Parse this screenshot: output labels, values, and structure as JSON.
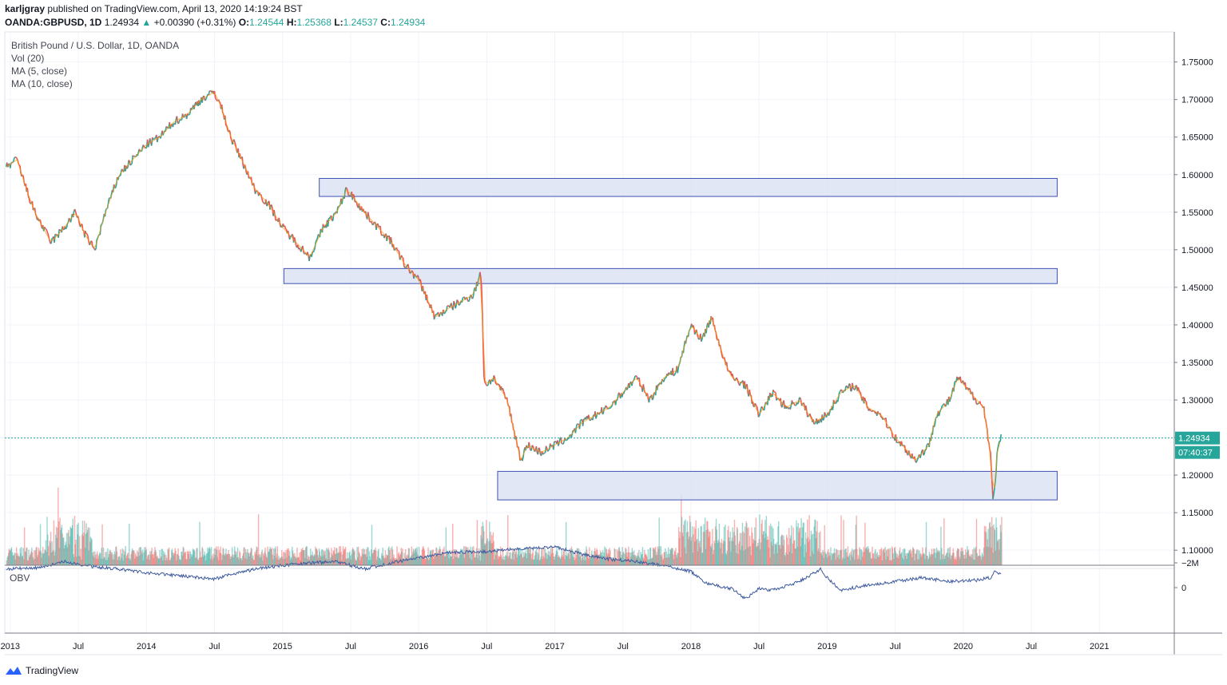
{
  "header": {
    "publisher": "karljgray",
    "published_text": "published on TradingView.com, April 13, 2020 14:19:24 BST",
    "symbol": "OANDA:GBPUSD, 1D",
    "last": "1.24934",
    "change_arrow": "▲",
    "change": "+0.00390 (+0.31%)",
    "o_label": "O:",
    "o_value": "1.24544",
    "h_label": "H:",
    "h_value": "1.25368",
    "l_label": "L:",
    "l_value": "1.24537",
    "c_label": "C:",
    "c_value": "1.24934"
  },
  "legend": {
    "title": "British Pound / U.S. Dollar, 1D, OANDA",
    "vol": "Vol (20)",
    "ma5": "MA (5, close)",
    "ma10": "MA (10, close)"
  },
  "obv": {
    "label": "OBV",
    "ticks": [
      "0",
      "−2M"
    ],
    "values": [
      0,
      -2
    ]
  },
  "price_tag": {
    "value": "1.24934",
    "countdown": "07:40:37"
  },
  "footer": {
    "brand": "TradingView",
    "icon": "tradingview-logo-icon"
  },
  "colors": {
    "up": "#26a69a",
    "down": "#ef5350",
    "ma": "#ff9800",
    "obv": "#3d5a9e",
    "zone_fill": "#dbe1f2",
    "zone_stroke": "#3f51b5",
    "tag": "#26a69a"
  },
  "chart_data": {
    "type": "line",
    "ylim": [
      1.08,
      1.79
    ],
    "xlim": [
      2012.96,
      2021.55
    ],
    "yticks": [
      "1.75000",
      "1.70000",
      "1.65000",
      "1.60000",
      "1.55000",
      "1.50000",
      "1.45000",
      "1.40000",
      "1.35000",
      "1.30000",
      "1.25000",
      "1.20000",
      "1.15000",
      "1.10000"
    ],
    "ytick_values": [
      1.75,
      1.7,
      1.65,
      1.6,
      1.55,
      1.5,
      1.45,
      1.4,
      1.35,
      1.3,
      1.25,
      1.2,
      1.15,
      1.1
    ],
    "xticks": [
      "2013",
      "Jul",
      "2014",
      "Jul",
      "2015",
      "Jul",
      "2016",
      "Jul",
      "2017",
      "Jul",
      "2018",
      "Jul",
      "2019",
      "Jul",
      "2020",
      "Jul",
      "2021"
    ],
    "xtick_values": [
      2013.0,
      2013.5,
      2014.0,
      2014.5,
      2015.0,
      2015.5,
      2016.0,
      2016.5,
      2017.0,
      2017.5,
      2018.0,
      2018.5,
      2019.0,
      2019.5,
      2020.0,
      2020.5,
      2021.0
    ],
    "series": [
      {
        "x": [
          2012.97,
          2013.05,
          2013.12,
          2013.18,
          2013.3,
          2013.4,
          2013.48,
          2013.55,
          2013.62,
          2013.7,
          2013.8,
          2013.9,
          2014.0,
          2014.1,
          2014.2,
          2014.3,
          2014.4,
          2014.5,
          2014.55,
          2014.62,
          2014.7,
          2014.8,
          2014.9,
          2015.0,
          2015.1,
          2015.2,
          2015.3,
          2015.4,
          2015.47,
          2015.52,
          2015.6,
          2015.7,
          2015.8,
          2015.9,
          2016.0,
          2016.05,
          2016.12,
          2016.2,
          2016.3,
          2016.4,
          2016.46,
          2016.48,
          2016.5,
          2016.55,
          2016.65,
          2016.75,
          2016.8,
          2016.9,
          2017.0,
          2017.1,
          2017.2,
          2017.3,
          2017.4,
          2017.5,
          2017.6,
          2017.7,
          2017.8,
          2017.9,
          2018.0,
          2018.08,
          2018.15,
          2018.25,
          2018.3,
          2018.4,
          2018.5,
          2018.6,
          2018.7,
          2018.8,
          2018.9,
          2019.0,
          2019.1,
          2019.2,
          2019.3,
          2019.4,
          2019.5,
          2019.6,
          2019.65,
          2019.75,
          2019.8,
          2019.9,
          2019.96,
          2020.05,
          2020.1,
          2020.15,
          2020.2,
          2020.22,
          2020.25,
          2020.28
        ],
        "values": [
          1.61,
          1.62,
          1.58,
          1.55,
          1.51,
          1.53,
          1.55,
          1.52,
          1.5,
          1.55,
          1.6,
          1.62,
          1.64,
          1.65,
          1.67,
          1.68,
          1.7,
          1.71,
          1.69,
          1.65,
          1.62,
          1.58,
          1.56,
          1.53,
          1.51,
          1.49,
          1.53,
          1.55,
          1.58,
          1.57,
          1.55,
          1.53,
          1.51,
          1.48,
          1.46,
          1.44,
          1.41,
          1.42,
          1.43,
          1.44,
          1.47,
          1.33,
          1.32,
          1.33,
          1.3,
          1.22,
          1.24,
          1.23,
          1.24,
          1.25,
          1.27,
          1.28,
          1.29,
          1.31,
          1.33,
          1.3,
          1.33,
          1.34,
          1.4,
          1.38,
          1.41,
          1.35,
          1.33,
          1.32,
          1.28,
          1.31,
          1.29,
          1.3,
          1.27,
          1.28,
          1.31,
          1.32,
          1.29,
          1.28,
          1.25,
          1.23,
          1.22,
          1.24,
          1.28,
          1.3,
          1.33,
          1.31,
          1.3,
          1.29,
          1.23,
          1.16,
          1.23,
          1.25
        ]
      }
    ],
    "zones": [
      {
        "x0": 2015.27,
        "x1": 2020.69,
        "y0": 1.571,
        "y1": 1.595
      },
      {
        "x0": 2015.01,
        "x1": 2020.69,
        "y0": 1.455,
        "y1": 1.475
      },
      {
        "x0": 2016.58,
        "x1": 2020.69,
        "y0": 1.167,
        "y1": 1.205
      }
    ],
    "current_price_line": 1.24934,
    "obv_series": {
      "x": [
        2012.97,
        2013.2,
        2013.4,
        2013.6,
        2013.8,
        2014.0,
        2014.2,
        2014.4,
        2014.5,
        2014.6,
        2014.8,
        2015.0,
        2015.2,
        2015.4,
        2015.6,
        2015.8,
        2016.0,
        2016.2,
        2016.4,
        2016.5,
        2016.7,
        2016.9,
        2017.0,
        2017.2,
        2017.4,
        2017.6,
        2017.8,
        2018.0,
        2018.1,
        2018.3,
        2018.4,
        2018.5,
        2018.6,
        2018.8,
        2018.95,
        2019.0,
        2019.1,
        2019.3,
        2019.5,
        2019.7,
        2019.9,
        2020.1,
        2020.2,
        2020.23,
        2020.28
      ],
      "values": [
        -1.5,
        -1.6,
        -2.1,
        -1.7,
        -1.5,
        -1.2,
        -1.0,
        -0.8,
        -0.7,
        -1.0,
        -1.5,
        -1.8,
        -2.0,
        -2.1,
        -1.5,
        -2.0,
        -2.4,
        -2.8,
        -2.9,
        -2.9,
        -3.1,
        -3.2,
        -3.3,
        -2.7,
        -2.3,
        -2.1,
        -1.8,
        -1.3,
        -0.4,
        0.1,
        0.9,
        0.1,
        0.2,
        -0.5,
        -1.5,
        -0.8,
        0.2,
        -0.2,
        -0.5,
        -0.8,
        -0.5,
        -0.6,
        -0.8,
        -1.3,
        -1.0
      ]
    }
  }
}
